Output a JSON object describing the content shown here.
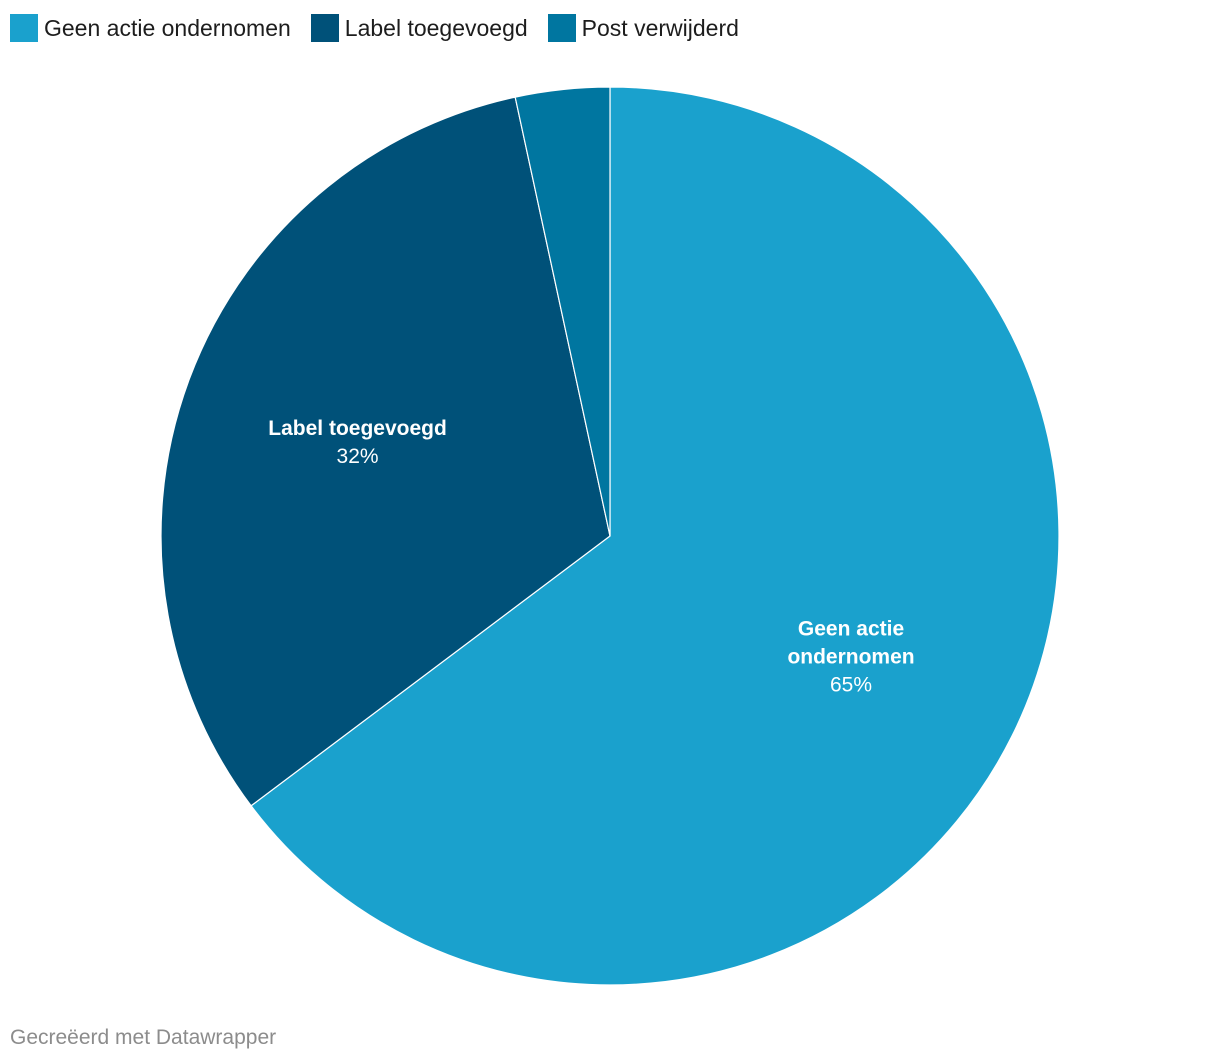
{
  "chart_data": {
    "type": "pie",
    "slices": [
      {
        "label": "Geen actie ondernomen",
        "value": 65,
        "value_label": "65%",
        "color": "#1aa1cd",
        "label_lines": [
          "Geen actie",
          "ondernomen"
        ],
        "show_label": true
      },
      {
        "label": "Label toegevoegd",
        "value": 32,
        "value_label": "32%",
        "color": "#005179",
        "label_lines": [
          "Label toegevoegd"
        ],
        "show_label": true
      },
      {
        "label": "Post verwijderd",
        "value": 3.4,
        "value_label": "",
        "color": "#0076a0",
        "label_lines": [],
        "show_label": false
      }
    ],
    "legend": [
      "Geen actie ondernomen",
      "Label toegevoegd",
      "Post verwijderd"
    ],
    "legend_position": "top-left",
    "start_angle": "12 o'clock",
    "direction": "clockwise"
  },
  "footer": {
    "credit": "Gecreëerd met Datawrapper"
  }
}
